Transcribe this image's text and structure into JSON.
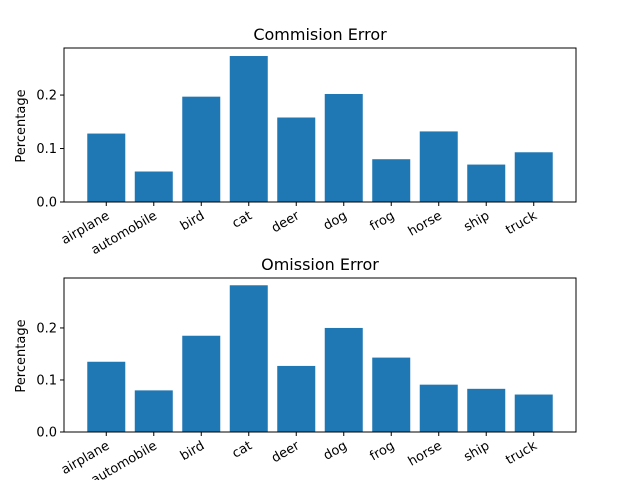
{
  "chart_data": [
    {
      "type": "bar",
      "title": "Commision Error",
      "xlabel": "",
      "ylabel": "Percentage",
      "categories": [
        "airplane",
        "automobile",
        "bird",
        "cat",
        "deer",
        "dog",
        "frog",
        "horse",
        "ship",
        "truck"
      ],
      "values": [
        0.128,
        0.057,
        0.197,
        0.273,
        0.158,
        0.202,
        0.08,
        0.132,
        0.07,
        0.093
      ],
      "ylim": [
        0,
        0.288
      ],
      "yticks": [
        0.0,
        0.1,
        0.2
      ],
      "bar_color": "#1f77b4",
      "grid": false
    },
    {
      "type": "bar",
      "title": "Omission Error",
      "xlabel": "",
      "ylabel": "Percentage",
      "categories": [
        "airplane",
        "automobile",
        "bird",
        "cat",
        "deer",
        "dog",
        "frog",
        "horse",
        "ship",
        "truck"
      ],
      "values": [
        0.135,
        0.08,
        0.185,
        0.282,
        0.127,
        0.2,
        0.143,
        0.091,
        0.083,
        0.072
      ],
      "ylim": [
        0,
        0.296
      ],
      "yticks": [
        0.0,
        0.1,
        0.2
      ],
      "bar_color": "#1f77b4",
      "grid": false
    }
  ]
}
